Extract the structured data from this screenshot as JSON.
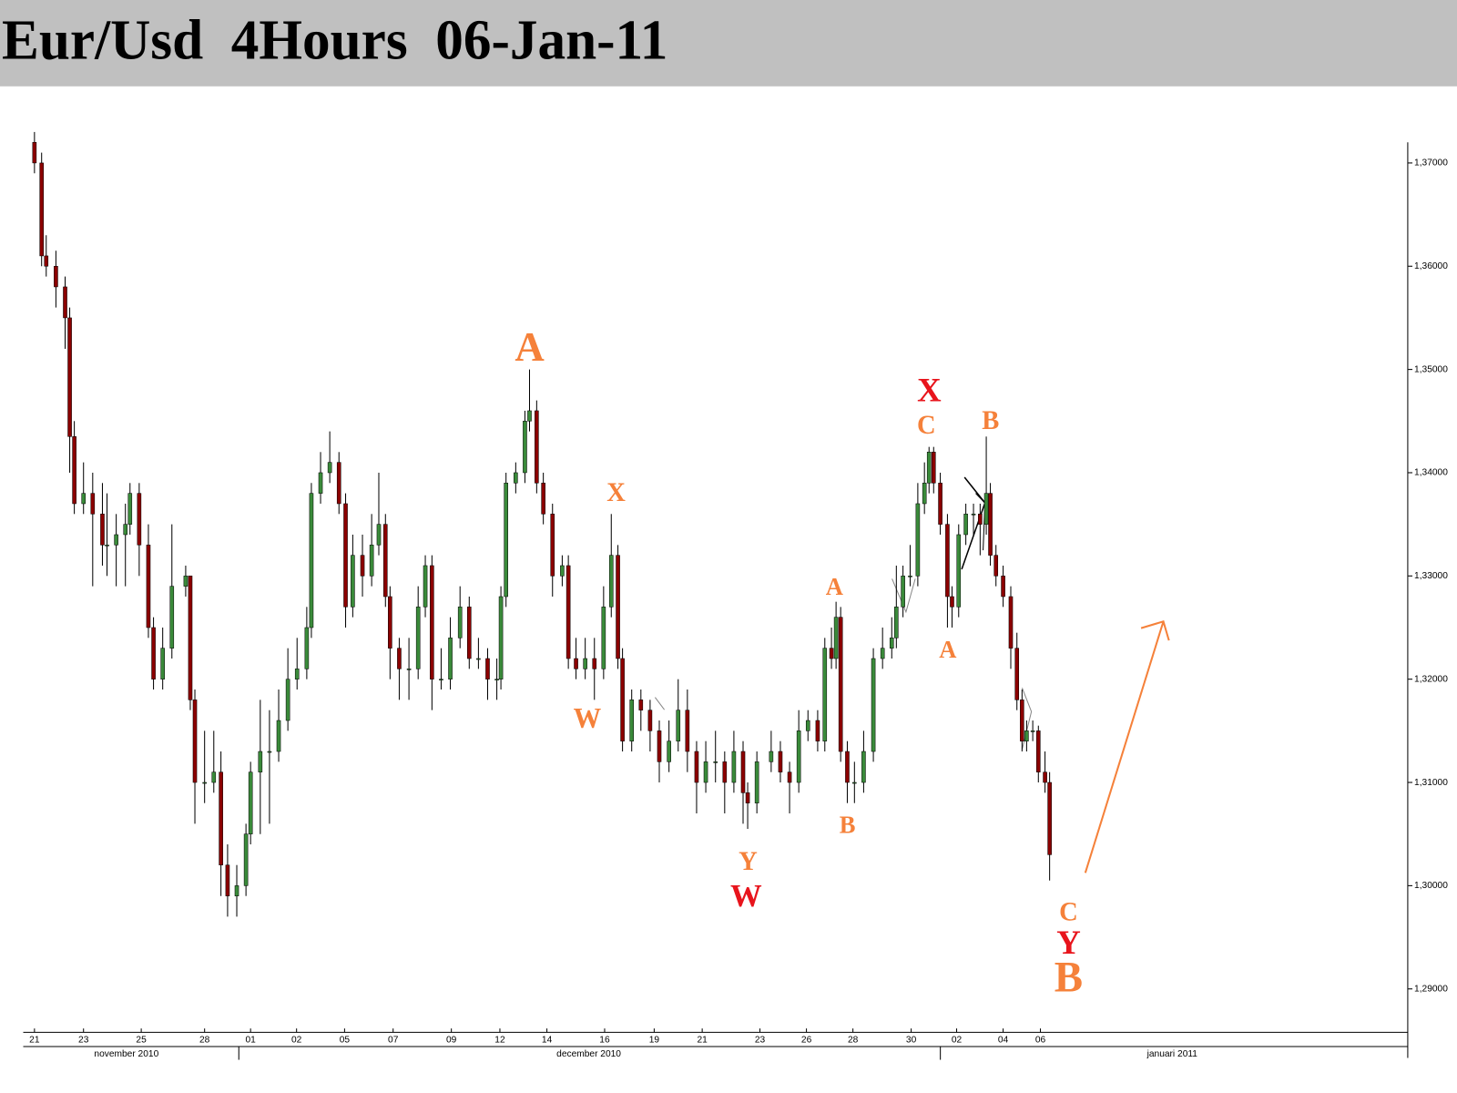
{
  "chart_data": {
    "type": "candlestick",
    "title": "Eur/Usd  4Hours  06-Jan-11",
    "up_color": "#3a8a3a",
    "down_color": "#8b0000",
    "ylim": [
      1.2858,
      1.372
    ],
    "xlim": [
      0,
      271
    ],
    "yticks": [
      {
        "value": 1.29,
        "label": "1,29000"
      },
      {
        "value": 1.3,
        "label": "1,30000"
      },
      {
        "value": 1.31,
        "label": "1,31000"
      },
      {
        "value": 1.32,
        "label": "1,32000"
      },
      {
        "value": 1.33,
        "label": "1,33000"
      },
      {
        "value": 1.34,
        "label": "1,34000"
      },
      {
        "value": 1.35,
        "label": "1,35000"
      },
      {
        "value": 1.36,
        "label": "1,36000"
      },
      {
        "value": 1.37,
        "label": "1,37000"
      }
    ],
    "xticks": [
      {
        "value": 2.2,
        "label": "21"
      },
      {
        "value": 11.8,
        "label": "23"
      },
      {
        "value": 23.1,
        "label": "25"
      },
      {
        "value": 35.5,
        "label": "28"
      },
      {
        "value": 44.5,
        "label": "01"
      },
      {
        "value": 53.5,
        "label": "02"
      },
      {
        "value": 62.9,
        "label": "05"
      },
      {
        "value": 72.4,
        "label": "07"
      },
      {
        "value": 83.8,
        "label": "09"
      },
      {
        "value": 93.3,
        "label": "12"
      },
      {
        "value": 102.5,
        "label": "14"
      },
      {
        "value": 113.8,
        "label": "16"
      },
      {
        "value": 123.5,
        "label": "19"
      },
      {
        "value": 132.9,
        "label": "21"
      },
      {
        "value": 144.2,
        "label": "23"
      },
      {
        "value": 153.3,
        "label": "26"
      },
      {
        "value": 162.4,
        "label": "28"
      },
      {
        "value": 173.8,
        "label": "30"
      },
      {
        "value": 182.7,
        "label": "02"
      },
      {
        "value": 191.8,
        "label": "04"
      },
      {
        "value": 199.1,
        "label": "06"
      }
    ],
    "xmonths": [
      {
        "value": 20.2,
        "label": "november 2010"
      },
      {
        "value": 110.7,
        "label": "december 2010"
      },
      {
        "value": 224.9,
        "label": "januari 2011"
      }
    ],
    "x": [
      2.2,
      3.6,
      4.5,
      6.4,
      8.2,
      9.1,
      10,
      11.8,
      13.6,
      15.5,
      16.4,
      18.2,
      20,
      20.9,
      22.7,
      24.5,
      25.5,
      27.3,
      29.1,
      31.8,
      32.7,
      33.6,
      35.5,
      37.3,
      38.7,
      40,
      41.8,
      43.6,
      44.5,
      46.4,
      48.2,
      50,
      51.8,
      53.6,
      55.5,
      56.4,
      58.2,
      60,
      61.8,
      63.1,
      64.5,
      66.4,
      68.2,
      69.6,
      70.9,
      71.8,
      73.6,
      75.5,
      77.3,
      78.7,
      80,
      81.8,
      83.6,
      85.5,
      87.3,
      89.1,
      90.9,
      92.7,
      93.5,
      94.5,
      96.4,
      98.2,
      99.1,
      100.5,
      101.8,
      103.6,
      105.5,
      106.7,
      108.2,
      110,
      111.8,
      113.6,
      115.1,
      116.4,
      117.3,
      119.1,
      120.9,
      122.7,
      124.5,
      126.4,
      128.2,
      130,
      131.8,
      133.6,
      135.5,
      137.3,
      139.1,
      140.9,
      141.8,
      143.6,
      146.4,
      148.2,
      150,
      151.8,
      153.6,
      155.5,
      156.9,
      158.2,
      159.1,
      160,
      161.3,
      162.7,
      164.5,
      166.4,
      168.2,
      170,
      170.9,
      172.2,
      173.6,
      175.1,
      176.4,
      177.3,
      178.2,
      179.5,
      180.9,
      181.8,
      183.1,
      184.5,
      186,
      187.3,
      188.5,
      189.3,
      190.4,
      191.8,
      193.3,
      194.5,
      195.5,
      196.4,
      197.6,
      198.7,
      200,
      200.9
    ],
    "ohlc": [
      [
        1.372,
        1.373,
        1.369,
        1.37
      ],
      [
        1.37,
        1.371,
        1.36,
        1.361
      ],
      [
        1.361,
        1.363,
        1.359,
        1.36
      ],
      [
        1.36,
        1.3615,
        1.356,
        1.358
      ],
      [
        1.358,
        1.359,
        1.352,
        1.355
      ],
      [
        1.355,
        1.356,
        1.34,
        1.3435
      ],
      [
        1.3435,
        1.345,
        1.336,
        1.337
      ],
      [
        1.337,
        1.341,
        1.336,
        1.338
      ],
      [
        1.338,
        1.34,
        1.329,
        1.336
      ],
      [
        1.336,
        1.339,
        1.331,
        1.333
      ],
      [
        1.333,
        1.338,
        1.33,
        1.333
      ],
      [
        1.333,
        1.336,
        1.329,
        1.334
      ],
      [
        1.334,
        1.337,
        1.329,
        1.335
      ],
      [
        1.335,
        1.339,
        1.334,
        1.338
      ],
      [
        1.338,
        1.339,
        1.33,
        1.333
      ],
      [
        1.333,
        1.335,
        1.324,
        1.325
      ],
      [
        1.325,
        1.326,
        1.319,
        1.32
      ],
      [
        1.32,
        1.325,
        1.319,
        1.323
      ],
      [
        1.323,
        1.335,
        1.322,
        1.329
      ],
      [
        1.329,
        1.331,
        1.328,
        1.33
      ],
      [
        1.33,
        1.33,
        1.317,
        1.318
      ],
      [
        1.318,
        1.319,
        1.306,
        1.31
      ],
      [
        1.31,
        1.315,
        1.308,
        1.31
      ],
      [
        1.31,
        1.315,
        1.309,
        1.311
      ],
      [
        1.311,
        1.313,
        1.299,
        1.302
      ],
      [
        1.302,
        1.304,
        1.297,
        1.299
      ],
      [
        1.299,
        1.302,
        1.297,
        1.3
      ],
      [
        1.3,
        1.306,
        1.299,
        1.305
      ],
      [
        1.305,
        1.312,
        1.304,
        1.311
      ],
      [
        1.311,
        1.318,
        1.305,
        1.313
      ],
      [
        1.313,
        1.317,
        1.306,
        1.313
      ],
      [
        1.313,
        1.319,
        1.312,
        1.316
      ],
      [
        1.316,
        1.323,
        1.315,
        1.32
      ],
      [
        1.32,
        1.324,
        1.319,
        1.321
      ],
      [
        1.321,
        1.327,
        1.32,
        1.325
      ],
      [
        1.325,
        1.339,
        1.324,
        1.338
      ],
      [
        1.338,
        1.342,
        1.337,
        1.34
      ],
      [
        1.34,
        1.344,
        1.339,
        1.341
      ],
      [
        1.341,
        1.342,
        1.336,
        1.337
      ],
      [
        1.337,
        1.338,
        1.325,
        1.327
      ],
      [
        1.327,
        1.334,
        1.326,
        1.332
      ],
      [
        1.332,
        1.334,
        1.328,
        1.33
      ],
      [
        1.33,
        1.336,
        1.329,
        1.333
      ],
      [
        1.333,
        1.34,
        1.332,
        1.335
      ],
      [
        1.335,
        1.336,
        1.327,
        1.328
      ],
      [
        1.328,
        1.329,
        1.32,
        1.323
      ],
      [
        1.323,
        1.324,
        1.318,
        1.321
      ],
      [
        1.321,
        1.324,
        1.318,
        1.321
      ],
      [
        1.321,
        1.329,
        1.32,
        1.327
      ],
      [
        1.327,
        1.332,
        1.326,
        1.331
      ],
      [
        1.331,
        1.332,
        1.317,
        1.32
      ],
      [
        1.32,
        1.323,
        1.319,
        1.32
      ],
      [
        1.32,
        1.326,
        1.319,
        1.324
      ],
      [
        1.324,
        1.329,
        1.323,
        1.327
      ],
      [
        1.327,
        1.328,
        1.321,
        1.322
      ],
      [
        1.322,
        1.324,
        1.321,
        1.322
      ],
      [
        1.322,
        1.323,
        1.318,
        1.32
      ],
      [
        1.32,
        1.322,
        1.318,
        1.32
      ],
      [
        1.32,
        1.329,
        1.319,
        1.328
      ],
      [
        1.328,
        1.34,
        1.327,
        1.339
      ],
      [
        1.339,
        1.341,
        1.338,
        1.34
      ],
      [
        1.34,
        1.346,
        1.339,
        1.345
      ],
      [
        1.345,
        1.35,
        1.344,
        1.346
      ],
      [
        1.346,
        1.347,
        1.338,
        1.339
      ],
      [
        1.339,
        1.34,
        1.335,
        1.336
      ],
      [
        1.336,
        1.337,
        1.328,
        1.33
      ],
      [
        1.33,
        1.332,
        1.329,
        1.331
      ],
      [
        1.331,
        1.332,
        1.321,
        1.322
      ],
      [
        1.322,
        1.324,
        1.32,
        1.321
      ],
      [
        1.321,
        1.324,
        1.32,
        1.322
      ],
      [
        1.322,
        1.324,
        1.318,
        1.321
      ],
      [
        1.321,
        1.329,
        1.32,
        1.327
      ],
      [
        1.327,
        1.336,
        1.326,
        1.332
      ],
      [
        1.332,
        1.333,
        1.321,
        1.322
      ],
      [
        1.322,
        1.323,
        1.313,
        1.314
      ],
      [
        1.314,
        1.319,
        1.313,
        1.318
      ],
      [
        1.318,
        1.319,
        1.315,
        1.317
      ],
      [
        1.317,
        1.318,
        1.313,
        1.315
      ],
      [
        1.315,
        1.316,
        1.31,
        1.312
      ],
      [
        1.312,
        1.316,
        1.311,
        1.314
      ],
      [
        1.314,
        1.32,
        1.313,
        1.317
      ],
      [
        1.317,
        1.319,
        1.311,
        1.313
      ],
      [
        1.313,
        1.314,
        1.307,
        1.31
      ],
      [
        1.31,
        1.314,
        1.309,
        1.312
      ],
      [
        1.312,
        1.315,
        1.31,
        1.312
      ],
      [
        1.312,
        1.313,
        1.307,
        1.31
      ],
      [
        1.31,
        1.315,
        1.309,
        1.313
      ],
      [
        1.313,
        1.314,
        1.306,
        1.309
      ],
      [
        1.309,
        1.31,
        1.3055,
        1.308
      ],
      [
        1.308,
        1.313,
        1.307,
        1.312
      ],
      [
        1.312,
        1.315,
        1.311,
        1.313
      ],
      [
        1.313,
        1.314,
        1.31,
        1.311
      ],
      [
        1.311,
        1.312,
        1.307,
        1.31
      ],
      [
        1.31,
        1.317,
        1.309,
        1.315
      ],
      [
        1.315,
        1.317,
        1.314,
        1.316
      ],
      [
        1.316,
        1.317,
        1.313,
        1.314
      ],
      [
        1.314,
        1.324,
        1.313,
        1.323
      ],
      [
        1.323,
        1.325,
        1.321,
        1.322
      ],
      [
        1.322,
        1.3275,
        1.321,
        1.326
      ],
      [
        1.326,
        1.327,
        1.312,
        1.313
      ],
      [
        1.313,
        1.314,
        1.308,
        1.31
      ],
      [
        1.31,
        1.312,
        1.308,
        1.31
      ],
      [
        1.31,
        1.315,
        1.309,
        1.313
      ],
      [
        1.313,
        1.323,
        1.312,
        1.322
      ],
      [
        1.322,
        1.325,
        1.321,
        1.323
      ],
      [
        1.323,
        1.326,
        1.322,
        1.324
      ],
      [
        1.324,
        1.331,
        1.323,
        1.327
      ],
      [
        1.327,
        1.331,
        1.326,
        1.33
      ],
      [
        1.33,
        1.333,
        1.329,
        1.33
      ],
      [
        1.33,
        1.339,
        1.329,
        1.337
      ],
      [
        1.337,
        1.341,
        1.336,
        1.339
      ],
      [
        1.339,
        1.3425,
        1.338,
        1.342
      ],
      [
        1.342,
        1.3425,
        1.338,
        1.339
      ],
      [
        1.339,
        1.34,
        1.334,
        1.335
      ],
      [
        1.335,
        1.336,
        1.325,
        1.328
      ],
      [
        1.328,
        1.329,
        1.325,
        1.327
      ],
      [
        1.327,
        1.335,
        1.326,
        1.334
      ],
      [
        1.334,
        1.337,
        1.333,
        1.336
      ],
      [
        1.336,
        1.337,
        1.334,
        1.336
      ],
      [
        1.336,
        1.337,
        1.332,
        1.335
      ],
      [
        1.335,
        1.3435,
        1.334,
        1.338
      ],
      [
        1.338,
        1.339,
        1.331,
        1.332
      ],
      [
        1.332,
        1.333,
        1.329,
        1.33
      ],
      [
        1.33,
        1.331,
        1.327,
        1.328
      ],
      [
        1.328,
        1.329,
        1.321,
        1.323
      ],
      [
        1.323,
        1.3245,
        1.317,
        1.318
      ],
      [
        1.318,
        1.319,
        1.313,
        1.314
      ],
      [
        1.314,
        1.316,
        1.313,
        1.315
      ],
      [
        1.315,
        1.316,
        1.314,
        1.315
      ],
      [
        1.315,
        1.3155,
        1.31,
        1.311
      ],
      [
        1.311,
        1.313,
        1.309,
        1.31
      ],
      [
        1.31,
        1.311,
        1.3005,
        1.303
      ]
    ],
    "annotations": [
      {
        "text": "A",
        "color": "#f5813a"
      },
      {
        "text": "X",
        "color": "#f5813a"
      },
      {
        "text": "W",
        "color": "#f5813a"
      },
      {
        "text": "Y",
        "color": "#f5813a"
      },
      {
        "text": "W",
        "color": "#e8141c"
      },
      {
        "text": "A",
        "color": "#f5813a"
      },
      {
        "text": "B",
        "color": "#f5813a"
      },
      {
        "text": "X",
        "color": "#e8141c"
      },
      {
        "text": "C",
        "color": "#f5813a"
      },
      {
        "text": "B",
        "color": "#f5813a"
      },
      {
        "text": "A",
        "color": "#f5813a"
      },
      {
        "text": "C",
        "color": "#f5813a"
      },
      {
        "text": "Y",
        "color": "#e8141c"
      },
      {
        "text": "B",
        "color": "#f5813a"
      }
    ]
  }
}
